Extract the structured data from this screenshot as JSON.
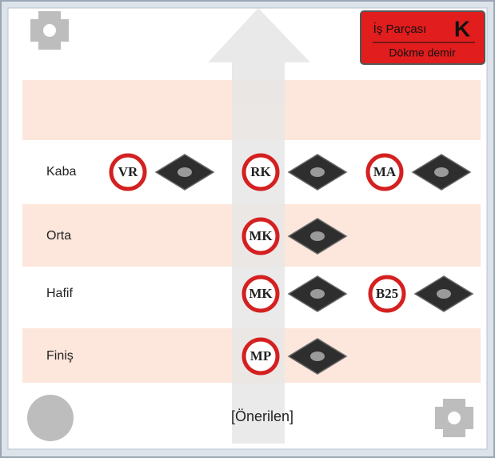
{
  "badge": {
    "title": "İş Parçası",
    "letter": "K",
    "subtitle": "Dökme demir"
  },
  "rows": [
    {
      "label": "Kaba",
      "items": [
        "VR",
        "RK",
        "MA"
      ]
    },
    {
      "label": "Orta",
      "items": [
        "MK"
      ]
    },
    {
      "label": "Hafif",
      "items": [
        "MK",
        "B25"
      ]
    },
    {
      "label": "Finiş",
      "items": [
        "MP"
      ]
    }
  ],
  "footer": "[Önerilen]"
}
